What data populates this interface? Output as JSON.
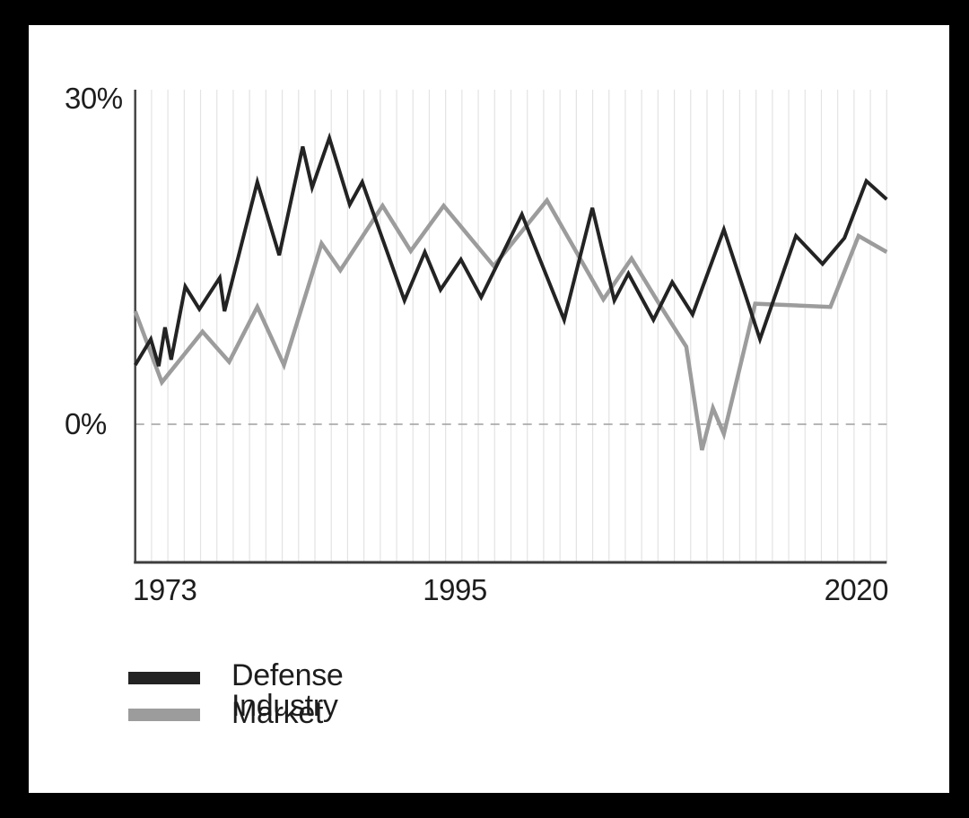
{
  "chart_data": {
    "type": "line",
    "title": "",
    "x_axis": {
      "ticks": [
        "1973",
        "1995",
        "2020"
      ],
      "range_years": [
        1973,
        2021
      ]
    },
    "y_axis": {
      "ticks": [
        "30%",
        "0%"
      ],
      "tick_values": [
        30,
        0
      ],
      "unit": "%",
      "range": [
        -13,
        31
      ],
      "zero_line_style": "dashed"
    },
    "grid": {
      "vertical": true,
      "horizontal": false
    },
    "legend_position": "bottom-left",
    "legend": [
      {
        "label": "Defense Industry",
        "color": "#232323"
      },
      {
        "label": "Market",
        "color": "#9c9c9c"
      }
    ],
    "series": [
      {
        "name": "Defense Industry",
        "color": "#232323",
        "points": [
          [
            1973.0,
            5.5
          ],
          [
            1974.0,
            7.9
          ],
          [
            1974.5,
            5.4
          ],
          [
            1974.9,
            9.0
          ],
          [
            1975.3,
            6.0
          ],
          [
            1976.2,
            12.8
          ],
          [
            1977.1,
            10.7
          ],
          [
            1978.4,
            13.6
          ],
          [
            1978.7,
            10.5
          ],
          [
            1980.8,
            22.5
          ],
          [
            1982.2,
            15.7
          ],
          [
            1983.7,
            25.8
          ],
          [
            1984.3,
            22.0
          ],
          [
            1985.4,
            26.6
          ],
          [
            1986.7,
            20.4
          ],
          [
            1987.5,
            22.5
          ],
          [
            1990.2,
            11.5
          ],
          [
            1991.5,
            16.0
          ],
          [
            1992.5,
            12.5
          ],
          [
            1993.8,
            15.3
          ],
          [
            1995.1,
            11.8
          ],
          [
            1997.7,
            19.5
          ],
          [
            2000.4,
            9.7
          ],
          [
            2002.2,
            20.1
          ],
          [
            2003.6,
            11.5
          ],
          [
            2004.5,
            14.0
          ],
          [
            2006.1,
            9.7
          ],
          [
            2007.3,
            13.2
          ],
          [
            2008.6,
            10.2
          ],
          [
            2010.6,
            18.1
          ],
          [
            2012.9,
            7.9
          ],
          [
            2015.2,
            17.5
          ],
          [
            2016.9,
            14.9
          ],
          [
            2018.3,
            17.3
          ],
          [
            2019.7,
            22.6
          ],
          [
            2021.0,
            20.9
          ]
        ]
      },
      {
        "name": "Market",
        "color": "#9c9c9c",
        "points": [
          [
            1973.0,
            10.5
          ],
          [
            1974.7,
            3.9
          ],
          [
            1977.3,
            8.6
          ],
          [
            1979.0,
            5.8
          ],
          [
            1980.8,
            10.9
          ],
          [
            1982.5,
            5.5
          ],
          [
            1984.9,
            16.8
          ],
          [
            1986.1,
            14.3
          ],
          [
            1988.8,
            20.3
          ],
          [
            1990.6,
            16.1
          ],
          [
            1992.7,
            20.3
          ],
          [
            1995.9,
            14.7
          ],
          [
            1999.3,
            20.8
          ],
          [
            2002.9,
            11.6
          ],
          [
            2004.7,
            15.4
          ],
          [
            2006.5,
            11.1
          ],
          [
            2008.2,
            7.2
          ],
          [
            2009.2,
            -2.4
          ],
          [
            2009.9,
            1.5
          ],
          [
            2010.6,
            -0.9
          ],
          [
            2012.6,
            11.2
          ],
          [
            2017.4,
            10.9
          ],
          [
            2019.2,
            17.5
          ],
          [
            2021.0,
            16.0
          ]
        ]
      }
    ]
  }
}
